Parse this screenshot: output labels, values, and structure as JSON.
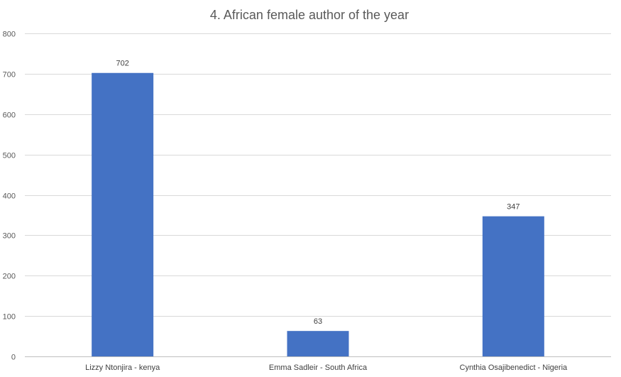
{
  "chart_data": {
    "type": "bar",
    "title": "4. African female author of the year",
    "categories": [
      "Lizzy Ntonjira - kenya",
      "Emma Sadleir - South Africa",
      "Cynthia Osajibenedict - Nigeria"
    ],
    "series": [
      {
        "values": [
          702,
          63,
          347
        ]
      }
    ],
    "data_labels": [
      "702",
      "63",
      "347"
    ],
    "y_ticks": [
      "0",
      "100",
      "200",
      "300",
      "400",
      "500",
      "600",
      "700",
      "800"
    ],
    "ylim": [
      0,
      800
    ],
    "grid": true,
    "legend": "none",
    "colors": {
      "bar": "#4472C4",
      "grid": "#D9D9D9",
      "axis": "#BFBFBF"
    }
  }
}
